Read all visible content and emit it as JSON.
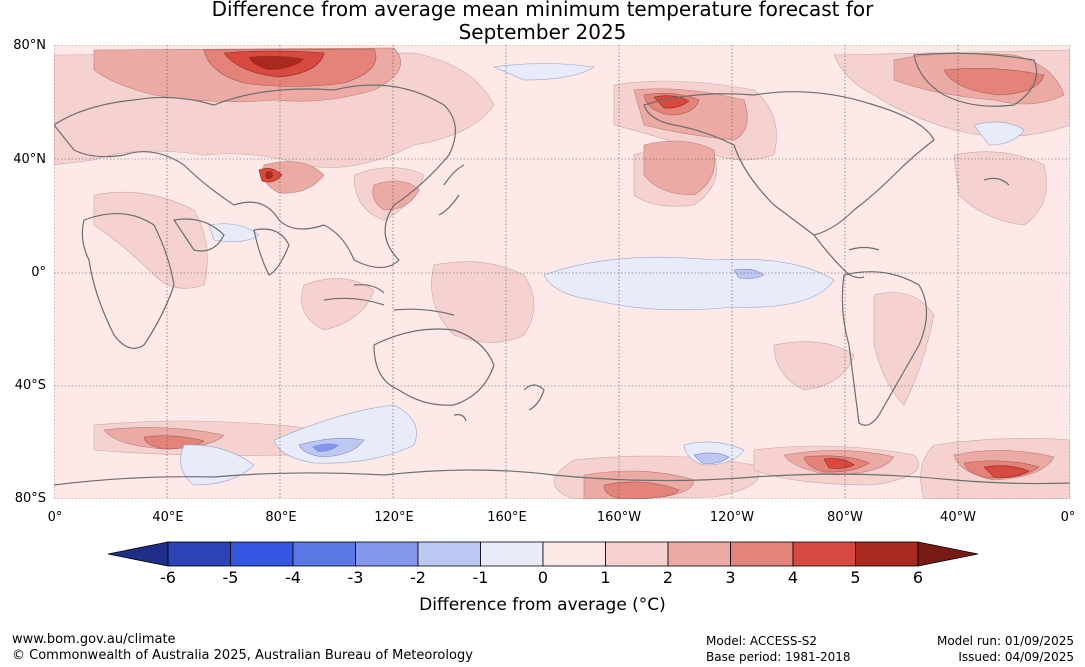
{
  "title_line1": "Difference from average mean minimum temperature forecast for",
  "title_line2": "September 2025",
  "lat_labels": [
    "80°N",
    "40°N",
    "0°",
    "40°S",
    "80°S"
  ],
  "lon_labels": [
    "0°",
    "40°E",
    "80°E",
    "120°E",
    "160°E",
    "160°W",
    "120°W",
    "80°W",
    "40°W",
    "0°"
  ],
  "colorbar": {
    "ticks": [
      "-6",
      "-5",
      "-4",
      "-3",
      "-2",
      "-1",
      "0",
      "1",
      "2",
      "3",
      "4",
      "5",
      "6"
    ],
    "colors": [
      "#1f2f87",
      "#2a44b8",
      "#3457e2",
      "#5a78e3",
      "#8396eb",
      "#bcc7f2",
      "#e7ebfa",
      "#fce9e8",
      "#f5d2cf",
      "#ecaaa4",
      "#e3837a",
      "#d8493f",
      "#a9291f",
      "#7a1a14"
    ],
    "title": "Difference from average (°C)"
  },
  "footer": {
    "website": "www.bom.gov.au/climate",
    "copyright": "© Commonwealth of Australia 2025, Australian Bureau of Meteorology",
    "model": "Model: ACCESS-S2",
    "base_period": "Base period: 1981-2018",
    "model_run": "Model run: 01/09/2025",
    "issued": "Issued: 04/09/2025"
  }
}
